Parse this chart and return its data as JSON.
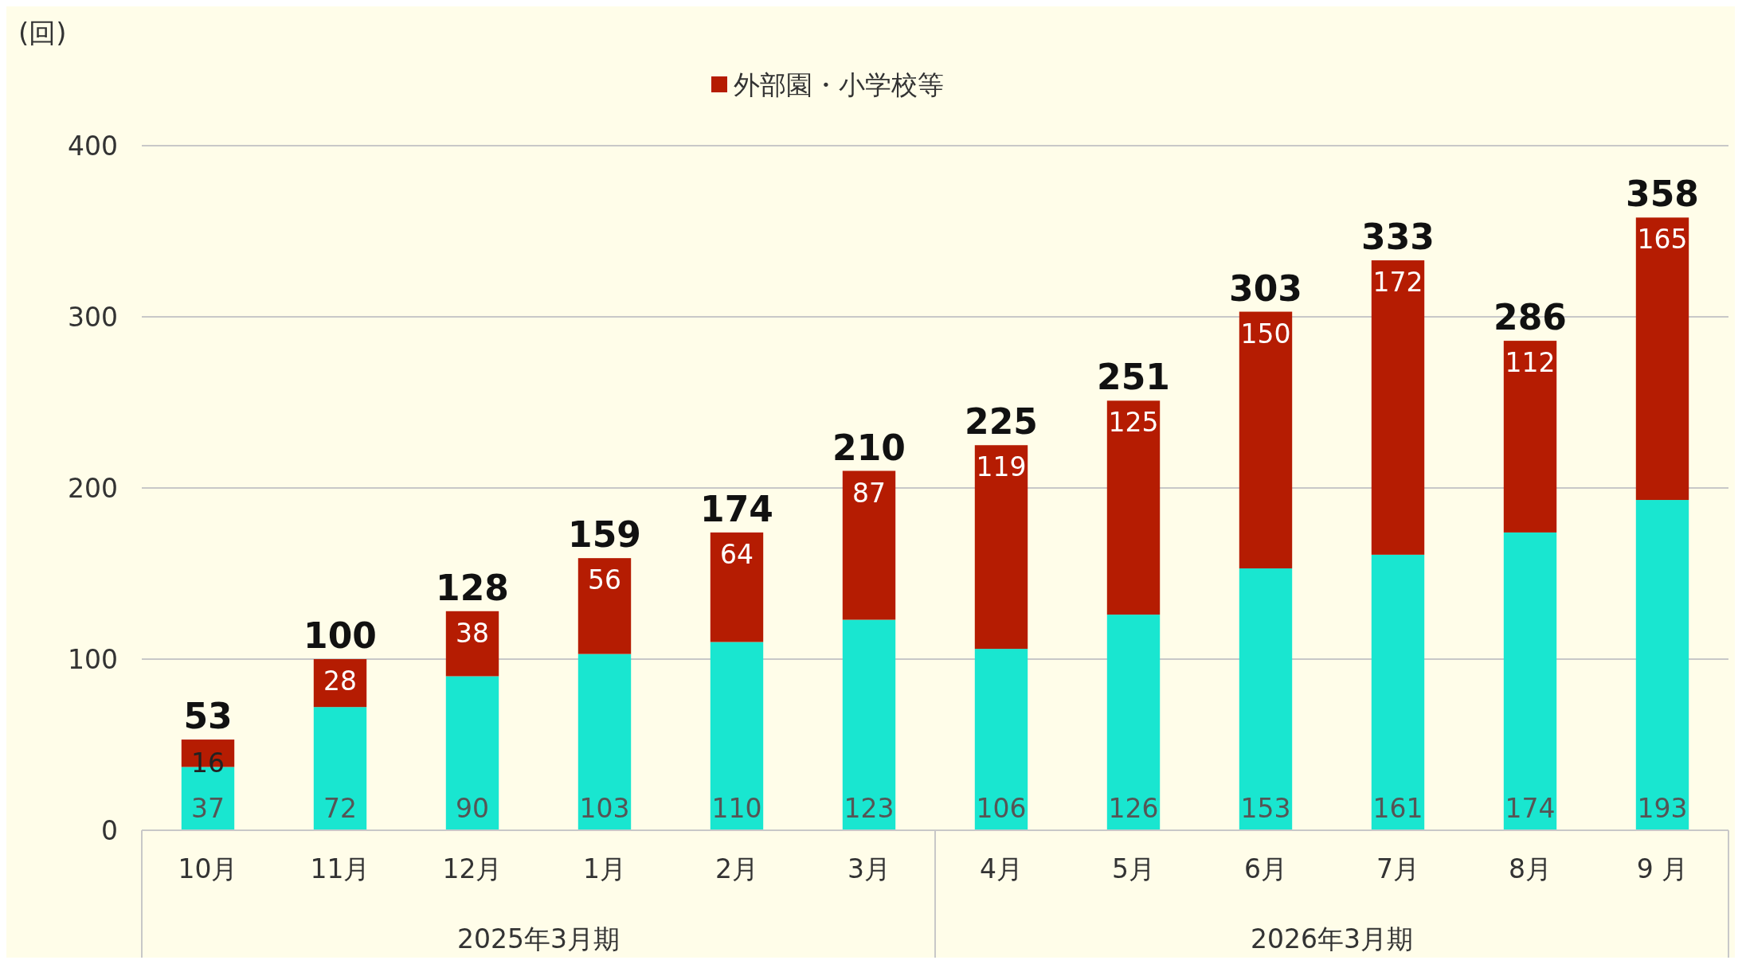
{
  "chart_data": {
    "type": "bar",
    "stacked": true,
    "ylabel": "(回)",
    "categories": [
      "10月",
      "11月",
      "12月",
      "1月",
      "2月",
      "3月",
      "4月",
      "5月",
      "6月",
      "7月",
      "8月",
      "9 月"
    ],
    "series": [
      {
        "color": "#19e6d0",
        "values": [
          37,
          72,
          90,
          103,
          110,
          123,
          106,
          126,
          153,
          161,
          174,
          193
        ]
      },
      {
        "name": "外部園・小学校等",
        "color": "#b51c02",
        "values": [
          16,
          28,
          38,
          56,
          64,
          87,
          119,
          125,
          150,
          172,
          112,
          165
        ]
      }
    ],
    "totals": [
      "53",
      "100",
      "128",
      "159",
      "174",
      "210",
      "225",
      "251",
      "303",
      "333",
      "286",
      "358"
    ],
    "data_labels": true,
    "ylim": [
      0,
      400
    ],
    "yticks": [
      0,
      100,
      200,
      300,
      400
    ],
    "grid": "y",
    "legend": "top",
    "annotations": [
      "2025年3月期",
      "2026年3月期"
    ]
  }
}
